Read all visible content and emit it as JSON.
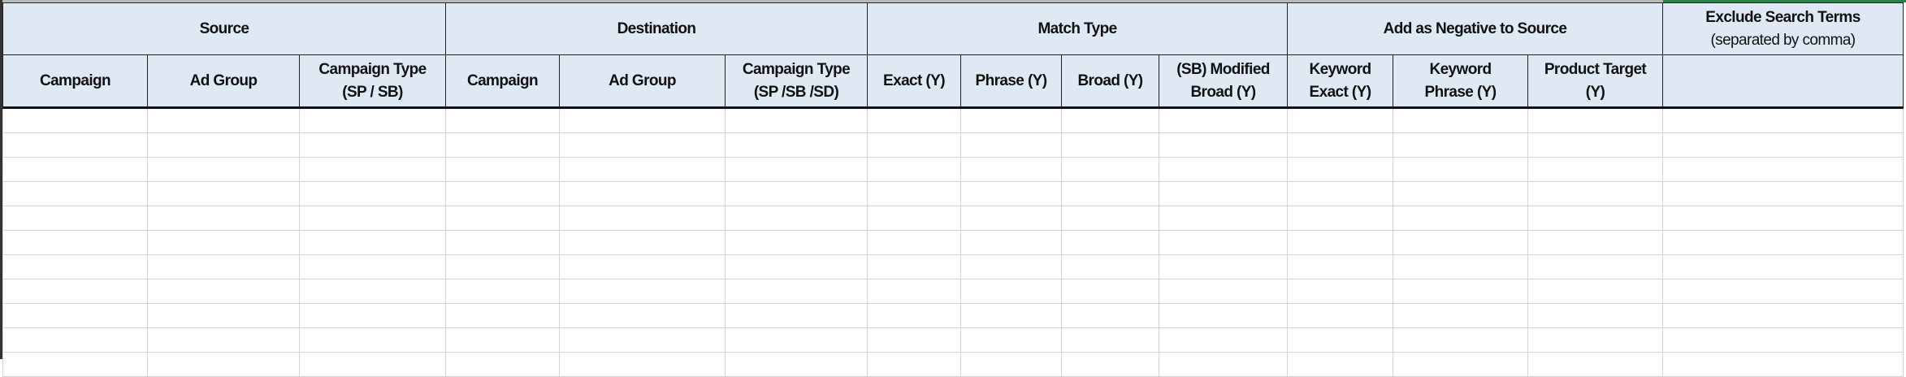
{
  "groups": [
    {
      "label": "Source",
      "span": 3
    },
    {
      "label": "Destination",
      "span": 3
    },
    {
      "label": "Match Type",
      "span": 4
    },
    {
      "label": "Add as Negative to Source",
      "span": 3
    },
    {
      "label": "Exclude Search Terms",
      "sub": "(separated by comma)",
      "span": 1
    }
  ],
  "columns": [
    [
      "Campaign"
    ],
    [
      "Ad Group"
    ],
    [
      "Campaign Type",
      "(SP / SB)"
    ],
    [
      "Campaign"
    ],
    [
      "Ad Group"
    ],
    [
      "Campaign Type",
      "(SP /SB /SD)"
    ],
    [
      "Exact (Y)"
    ],
    [
      "Phrase (Y)"
    ],
    [
      "Broad (Y)"
    ],
    [
      "(SB) Modified",
      "Broad (Y)"
    ],
    [
      "Keyword",
      "Exact (Y)"
    ],
    [
      "Keyword",
      "Phrase (Y)"
    ],
    [
      "Product Target",
      "(Y)"
    ],
    [
      ""
    ]
  ],
  "colors": {
    "header_bg": "#dfe9f4",
    "active_cell_border": "#2e7d45"
  }
}
